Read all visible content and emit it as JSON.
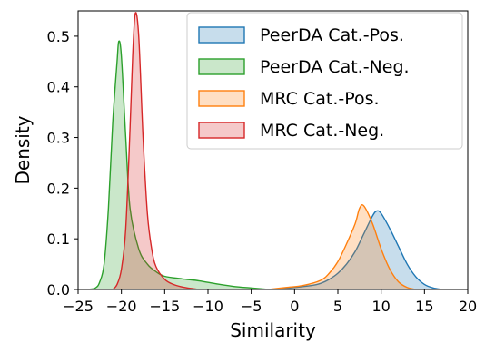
{
  "chart_data": {
    "type": "area",
    "xlabel": "Similarity",
    "ylabel": "Density",
    "xlim": [
      -25,
      20
    ],
    "ylim": [
      0,
      0.55
    ],
    "xticks": [
      -25,
      -20,
      -15,
      -10,
      -5,
      0,
      5,
      10,
      15,
      20
    ],
    "yticks": [
      0.0,
      0.1,
      0.2,
      0.3,
      0.4,
      0.5
    ],
    "ytick_labels": [
      "0.0",
      "0.1",
      "0.2",
      "0.3",
      "0.4",
      "0.5"
    ],
    "grid": false,
    "legend_position": "top-right",
    "series": [
      {
        "name": "PeerDA Cat.-Pos.",
        "color": "#1f77b4",
        "x": [
          -2,
          0,
          2,
          3,
          4,
          5,
          6,
          7,
          8,
          9,
          9.5,
          10,
          11,
          12,
          13,
          14,
          15,
          16,
          17
        ],
        "y": [
          0,
          0.004,
          0.008,
          0.012,
          0.02,
          0.032,
          0.05,
          0.075,
          0.11,
          0.145,
          0.155,
          0.15,
          0.12,
          0.085,
          0.05,
          0.025,
          0.01,
          0.003,
          0
        ]
      },
      {
        "name": "PeerDA Cat.-Neg.",
        "color": "#2ca02c",
        "x": [
          -24,
          -23,
          -22.5,
          -22,
          -21.5,
          -21,
          -20.5,
          -20.3,
          -20,
          -19.5,
          -19,
          -18,
          -17,
          -16,
          -15,
          -13,
          -11,
          -9,
          -7,
          -5,
          -3
        ],
        "y": [
          0,
          0.003,
          0.015,
          0.05,
          0.16,
          0.33,
          0.45,
          0.49,
          0.46,
          0.3,
          0.16,
          0.08,
          0.05,
          0.035,
          0.026,
          0.021,
          0.017,
          0.011,
          0.006,
          0.003,
          0
        ]
      },
      {
        "name": "MRC Cat.-Pos.",
        "color": "#ff7f0e",
        "x": [
          -3,
          -1,
          1,
          3,
          4,
          5,
          6,
          7,
          7.5,
          8,
          9,
          10,
          11,
          12,
          13,
          14
        ],
        "y": [
          0,
          0.004,
          0.008,
          0.018,
          0.032,
          0.055,
          0.09,
          0.13,
          0.16,
          0.165,
          0.13,
          0.08,
          0.04,
          0.015,
          0.004,
          0
        ]
      },
      {
        "name": "MRC Cat.-Neg.",
        "color": "#d62728",
        "x": [
          -21,
          -20.5,
          -20,
          -19.5,
          -19,
          -18.7,
          -18.4,
          -18,
          -17.5,
          -17,
          -16.5,
          -16,
          -15,
          -14,
          -13,
          -12,
          -11
        ],
        "y": [
          0,
          0.01,
          0.04,
          0.12,
          0.32,
          0.46,
          0.545,
          0.5,
          0.3,
          0.15,
          0.08,
          0.045,
          0.02,
          0.01,
          0.005,
          0.002,
          0
        ]
      }
    ]
  }
}
